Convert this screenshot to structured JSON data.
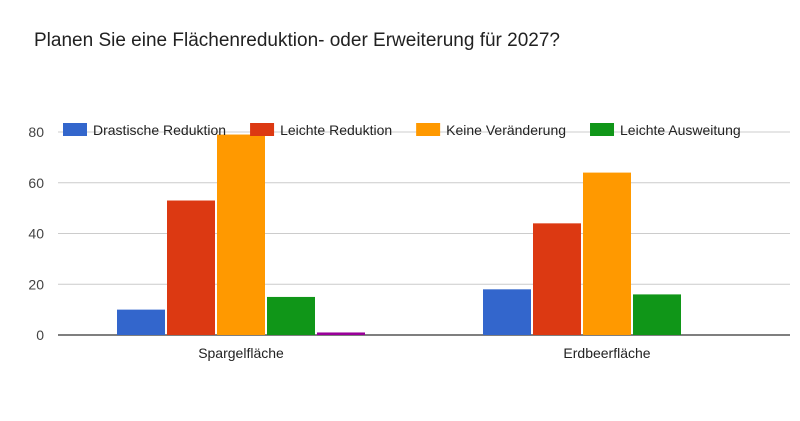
{
  "chart_data": {
    "type": "bar",
    "title": "Planen Sie eine Flächenreduktion- oder Erweiterung für 2027?",
    "xlabel": "",
    "ylabel": "",
    "categories": [
      "Spargelfläche",
      "Erdbeerfläche"
    ],
    "series": [
      {
        "name": "Drastische Reduktion",
        "color": "#3366cc",
        "values": [
          10,
          18
        ]
      },
      {
        "name": "Leichte Reduktion",
        "color": "#dc3912",
        "values": [
          53,
          44
        ]
      },
      {
        "name": "Keine Veränderung",
        "color": "#ff9900",
        "values": [
          79,
          64
        ]
      },
      {
        "name": "Leichte Ausweitung",
        "color": "#109618",
        "values": [
          15,
          16
        ]
      },
      {
        "name": "",
        "color": "#990099",
        "values": [
          1,
          0
        ]
      }
    ],
    "ylim": [
      0,
      80
    ],
    "yticks": [
      0,
      20,
      40,
      60,
      80
    ],
    "grid": true,
    "legend_position": "top"
  }
}
